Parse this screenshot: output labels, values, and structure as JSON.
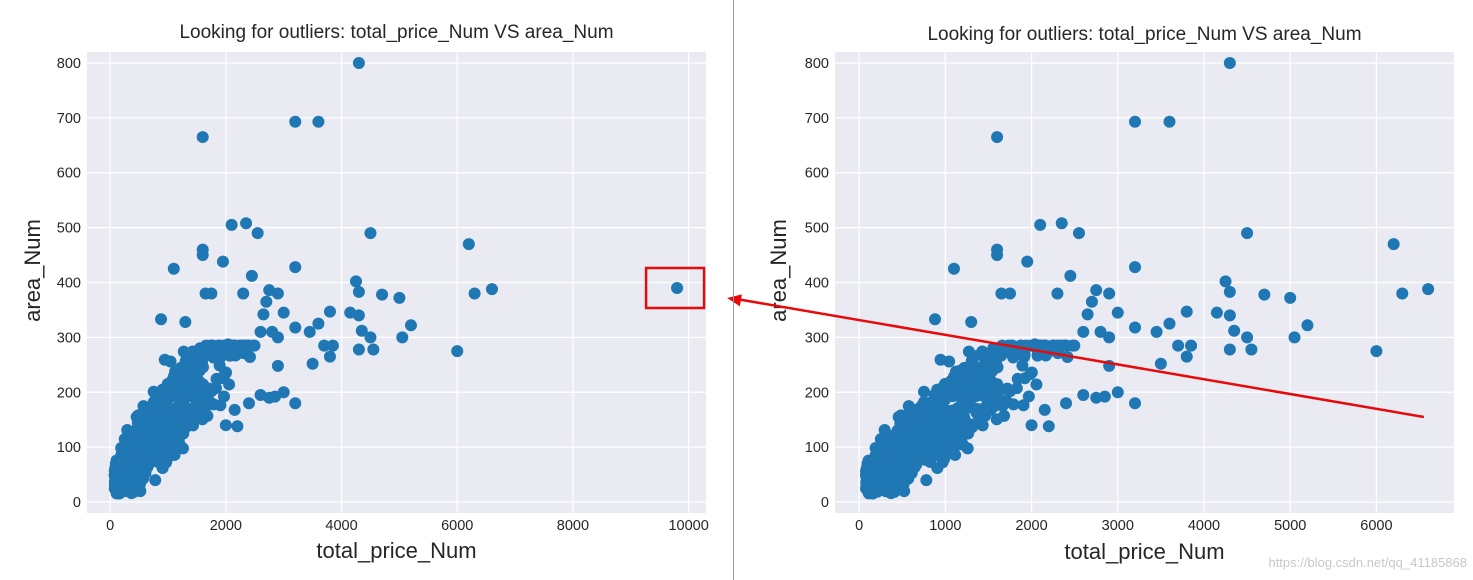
{
  "chart_data": [
    {
      "type": "scatter",
      "title": "Looking for outliers: total_price_Num VS area_Num",
      "xlabel": "total_price_Num",
      "ylabel": "area_Num",
      "xlim": [
        -400,
        10300
      ],
      "ylim": [
        -20,
        820
      ],
      "xticks": [
        0,
        2000,
        4000,
        6000,
        8000,
        10000
      ],
      "yticks": [
        0,
        100,
        200,
        300,
        400,
        500,
        600,
        700,
        800
      ],
      "grid": true,
      "color": "#1f77b4",
      "outliers": [
        [
          4300,
          800
        ],
        [
          1600,
          665
        ],
        [
          3200,
          693
        ],
        [
          3600,
          693
        ],
        [
          2100,
          505
        ],
        [
          2350,
          508
        ],
        [
          2550,
          490
        ],
        [
          4500,
          490
        ],
        [
          6200,
          470
        ],
        [
          1600,
          460
        ],
        [
          1600,
          450
        ],
        [
          1950,
          438
        ],
        [
          1100,
          425
        ],
        [
          3200,
          428
        ],
        [
          2450,
          412
        ],
        [
          4250,
          402
        ],
        [
          6600,
          388
        ],
        [
          6300,
          380
        ],
        [
          4300,
          383
        ],
        [
          4700,
          378
        ],
        [
          5000,
          372
        ],
        [
          2750,
          386
        ],
        [
          2900,
          380
        ],
        [
          3800,
          347
        ],
        [
          4150,
          345
        ],
        [
          4300,
          340
        ],
        [
          4350,
          312
        ],
        [
          3200,
          318
        ],
        [
          3450,
          310
        ],
        [
          5200,
          322
        ],
        [
          3700,
          285
        ],
        [
          3850,
          285
        ],
        [
          4300,
          278
        ],
        [
          4550,
          278
        ],
        [
          5050,
          300
        ],
        [
          4500,
          300
        ],
        [
          6000,
          275
        ],
        [
          3500,
          252
        ],
        [
          2900,
          248
        ],
        [
          3200,
          180
        ],
        [
          2750,
          190
        ],
        [
          2850,
          192
        ],
        [
          3800,
          265
        ],
        [
          2400,
          180
        ],
        [
          2000,
          140
        ],
        [
          2200,
          138
        ],
        [
          3000,
          200
        ],
        [
          2600,
          195
        ],
        [
          2300,
          380
        ],
        [
          1650,
          380
        ],
        [
          1750,
          380
        ],
        [
          2800,
          310
        ],
        [
          3000,
          345
        ],
        [
          2900,
          300
        ],
        [
          880,
          333
        ],
        [
          1300,
          328
        ],
        [
          2600,
          310
        ],
        [
          2650,
          342
        ],
        [
          2700,
          365
        ],
        [
          3600,
          325
        ],
        [
          9800,
          390
        ]
      ],
      "highlight": {
        "x": 9800,
        "y": 390,
        "color": "#e8090b"
      }
    },
    {
      "type": "scatter",
      "title": "Looking for outliers: total_price_Num VS area_Num",
      "xlabel": "total_price_Num",
      "ylabel": "area_Num",
      "xlim": [
        -280,
        6900
      ],
      "ylim": [
        -20,
        820
      ],
      "xticks": [
        0,
        1000,
        2000,
        3000,
        4000,
        5000,
        6000
      ],
      "yticks": [
        0,
        100,
        200,
        300,
        400,
        500,
        600,
        700,
        800
      ],
      "grid": true,
      "color": "#1f77b4",
      "outliers": [
        [
          4300,
          800
        ],
        [
          1600,
          665
        ],
        [
          3200,
          693
        ],
        [
          3600,
          693
        ],
        [
          2100,
          505
        ],
        [
          2350,
          508
        ],
        [
          2550,
          490
        ],
        [
          4500,
          490
        ],
        [
          6200,
          470
        ],
        [
          1600,
          460
        ],
        [
          1600,
          450
        ],
        [
          1950,
          438
        ],
        [
          1100,
          425
        ],
        [
          3200,
          428
        ],
        [
          2450,
          412
        ],
        [
          4250,
          402
        ],
        [
          6600,
          388
        ],
        [
          6300,
          380
        ],
        [
          4300,
          383
        ],
        [
          4700,
          378
        ],
        [
          5000,
          372
        ],
        [
          2750,
          386
        ],
        [
          2900,
          380
        ],
        [
          3800,
          347
        ],
        [
          4150,
          345
        ],
        [
          4300,
          340
        ],
        [
          4350,
          312
        ],
        [
          3200,
          318
        ],
        [
          3450,
          310
        ],
        [
          5200,
          322
        ],
        [
          3700,
          285
        ],
        [
          3850,
          285
        ],
        [
          4300,
          278
        ],
        [
          4550,
          278
        ],
        [
          5050,
          300
        ],
        [
          4500,
          300
        ],
        [
          6000,
          275
        ],
        [
          3500,
          252
        ],
        [
          2900,
          248
        ],
        [
          3200,
          180
        ],
        [
          2750,
          190
        ],
        [
          2850,
          192
        ],
        [
          3800,
          265
        ],
        [
          2400,
          180
        ],
        [
          2000,
          140
        ],
        [
          2200,
          138
        ],
        [
          3000,
          200
        ],
        [
          2600,
          195
        ],
        [
          2300,
          380
        ],
        [
          1650,
          380
        ],
        [
          1750,
          380
        ],
        [
          2800,
          310
        ],
        [
          3000,
          345
        ],
        [
          2900,
          300
        ],
        [
          880,
          333
        ],
        [
          1300,
          328
        ],
        [
          2600,
          310
        ],
        [
          2650,
          342
        ],
        [
          2700,
          365
        ],
        [
          3600,
          325
        ]
      ],
      "annotation_arrow": {
        "from": [
          6550,
          155
        ],
        "to_panel": 0,
        "to_point": [
          9800,
          390
        ],
        "color": "#e8090b"
      }
    }
  ],
  "watermark": "https://blog.csdn.net/qq_41185868"
}
